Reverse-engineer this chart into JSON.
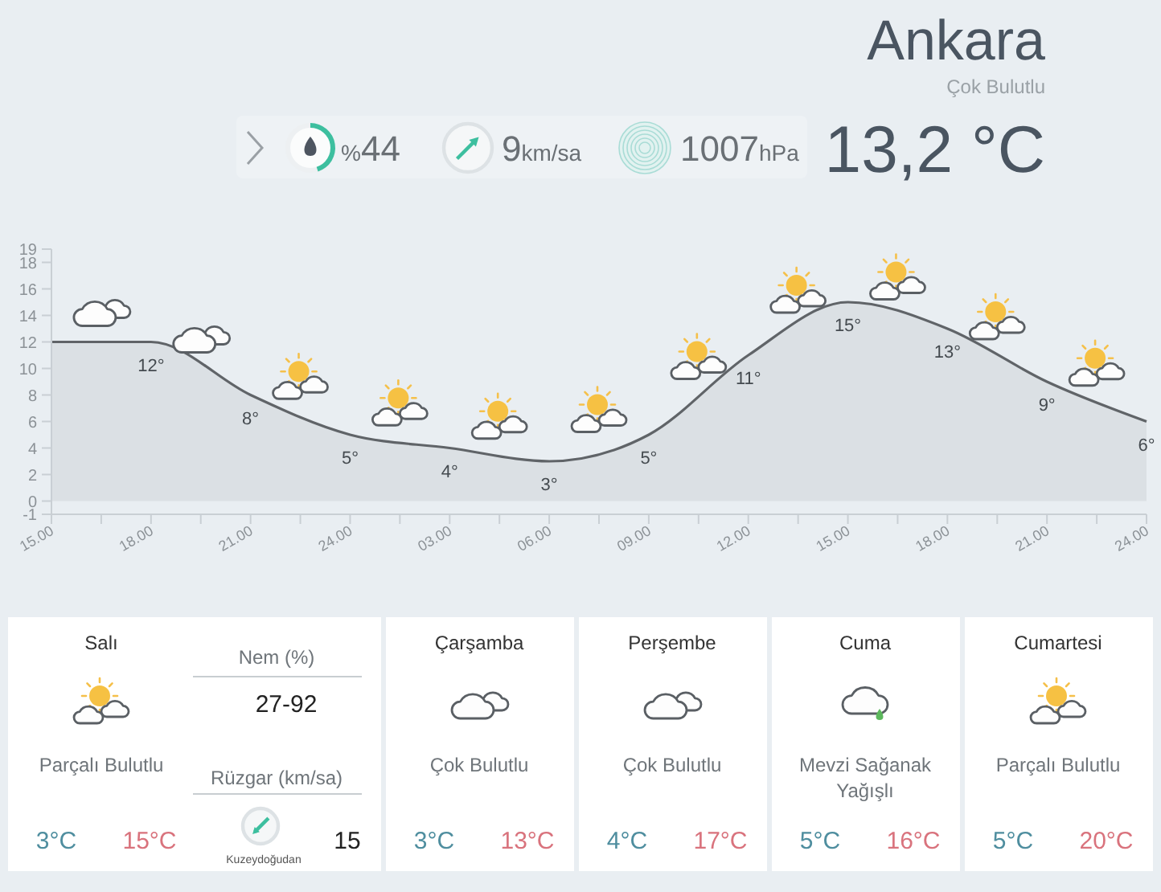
{
  "chart_data": [
    {
      "type": "other",
      "title": "Ankara",
      "subtitle": "Çok Bulutlu",
      "annotations": [
        "%44",
        "9km/sa",
        "1007hPa",
        "13,2 °C"
      ]
    },
    {
      "type": "area",
      "categories": [
        "15.00",
        "18.00",
        "21.00",
        "24.00",
        "03.00",
        "06.00",
        "09.00",
        "12.00",
        "15.00",
        "18.00",
        "21.00",
        "24.00"
      ],
      "values": [
        12,
        12,
        8,
        5,
        4,
        3,
        5,
        11,
        15,
        13,
        9,
        6
      ],
      "value_labels": [
        null,
        "12°",
        "8°",
        "5°",
        "4°",
        "3°",
        "5°",
        "11°",
        "15°",
        "13°",
        "9°",
        "6°"
      ],
      "color": "#606468",
      "ylim": [
        -1,
        19
      ],
      "yticks": [
        -1,
        0,
        2,
        4,
        6,
        8,
        10,
        12,
        14,
        16,
        18,
        19
      ]
    },
    {
      "type": "other",
      "title": "Salı",
      "annotations": [
        "Parçalı Bulutlu",
        "3°C",
        "15°C",
        "Nem (%)",
        "27-92",
        "Rüzgar (km/sa)",
        "15",
        "Kuzeydoğudan"
      ]
    },
    {
      "type": "other",
      "title": "Çarşamba",
      "annotations": [
        "Çok Bulutlu",
        "3°C",
        "13°C"
      ]
    },
    {
      "type": "other",
      "title": "Perşembe",
      "annotations": [
        "Çok Bulutlu",
        "4°C",
        "17°C"
      ]
    },
    {
      "type": "other",
      "title": "Cuma",
      "annotations": [
        "Mevzi Sağanak Yağışlı",
        "5°C",
        "16°C"
      ]
    },
    {
      "type": "other",
      "title": "Cumartesi",
      "annotations": [
        "Parçalı Bulutlu",
        "5°C",
        "20°C"
      ]
    }
  ]
}
